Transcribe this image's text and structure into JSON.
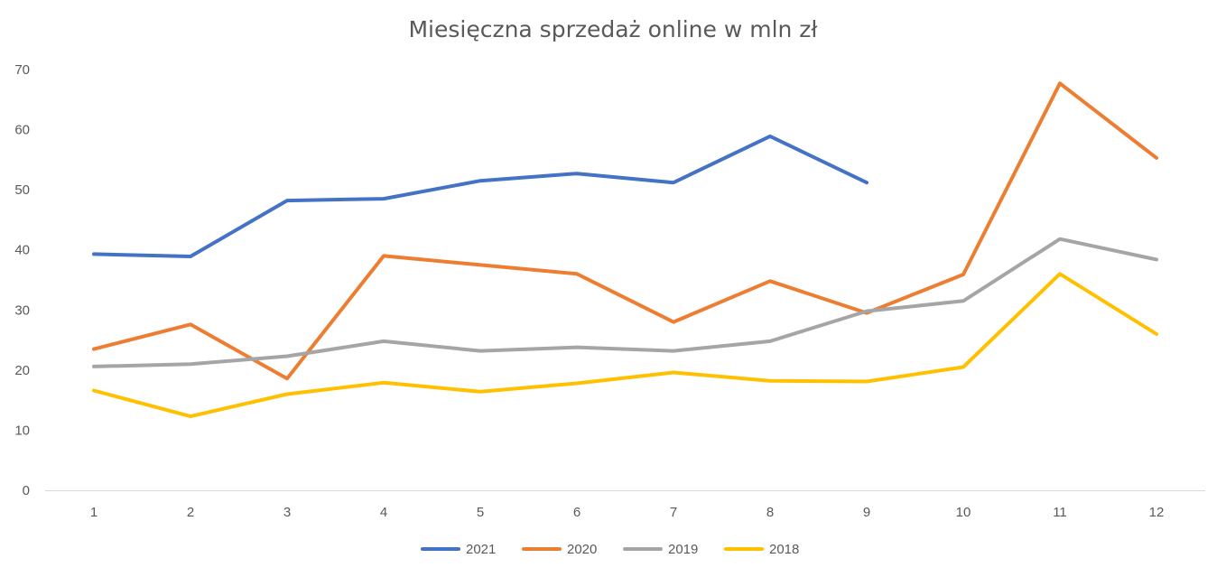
{
  "chart_data": {
    "type": "line",
    "title": "Miesięczna sprzedaż online w mln zł",
    "xlabel": "",
    "ylabel": "",
    "x": [
      "1",
      "2",
      "3",
      "4",
      "5",
      "6",
      "7",
      "8",
      "9",
      "10",
      "11",
      "12"
    ],
    "ylim": [
      0,
      70
    ],
    "yticks": [
      "0",
      "10",
      "20",
      "30",
      "40",
      "50",
      "60",
      "70"
    ],
    "grid": false,
    "legend_position": "bottom",
    "series": [
      {
        "name": "2021",
        "color": "#4472C4",
        "values": [
          39.3,
          38.9,
          48.2,
          48.5,
          51.5,
          52.7,
          51.2,
          58.9,
          51.2,
          null,
          null,
          null
        ]
      },
      {
        "name": "2020",
        "color": "#ED7D31",
        "values": [
          23.5,
          27.6,
          18.6,
          39.0,
          37.5,
          36.0,
          28.0,
          34.8,
          29.5,
          35.9,
          67.7,
          55.3
        ]
      },
      {
        "name": "2019",
        "color": "#A5A5A5",
        "values": [
          20.6,
          21.0,
          22.3,
          24.8,
          23.2,
          23.8,
          23.2,
          24.8,
          29.8,
          31.5,
          41.8,
          38.4
        ]
      },
      {
        "name": "2018",
        "color": "#FFC000",
        "values": [
          16.6,
          12.3,
          16.0,
          17.9,
          16.4,
          17.8,
          19.6,
          18.2,
          18.1,
          20.5,
          36.0,
          26.0
        ]
      }
    ]
  }
}
